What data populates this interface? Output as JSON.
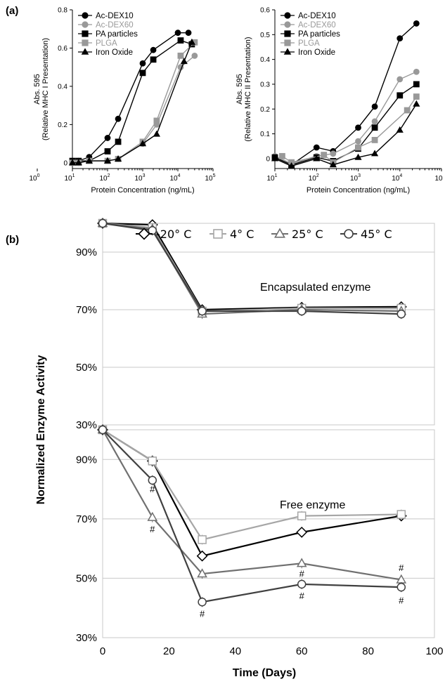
{
  "panel_labels": {
    "a": "(a)",
    "b": "(b)"
  },
  "chart_data": [
    {
      "id": "a1",
      "type": "line",
      "x_scale": "log",
      "xlabel": "Protein Concentration (ng/mL)",
      "ylabel_line1": "Abs. 595",
      "ylabel_line2": "(Relative MHC I Presentation)",
      "xlim": [
        1,
        5
      ],
      "ylim": [
        -0.03,
        0.8
      ],
      "x_ticks": [
        {
          "exp": 0,
          "label": "10",
          "sup": "0"
        },
        {
          "exp": 1,
          "label": "10",
          "sup": "1"
        },
        {
          "exp": 2,
          "label": "10",
          "sup": "2"
        },
        {
          "exp": 3,
          "label": "10",
          "sup": "3"
        },
        {
          "exp": 4,
          "label": "10",
          "sup": "4"
        },
        {
          "exp": 5,
          "label": "10",
          "sup": "5"
        }
      ],
      "y_ticks": [
        {
          "v": 0,
          "label": "0"
        },
        {
          "v": 0.2,
          "label": "0.2"
        },
        {
          "v": 0.4,
          "label": "0.4"
        },
        {
          "v": 0.6,
          "label": "0.6"
        },
        {
          "v": 0.8,
          "label": "0.8"
        }
      ],
      "series": [
        {
          "name": "Ac-DEX10",
          "color": "#000000",
          "marker": "circle",
          "x": [
            10,
            15,
            30,
            100,
            200,
            1000,
            2000,
            10000,
            20000
          ],
          "y": [
            0.01,
            0.01,
            0.03,
            0.13,
            0.23,
            0.52,
            0.59,
            0.68,
            0.68
          ]
        },
        {
          "name": "Ac-DEX60",
          "color": "#999999",
          "marker": "circle",
          "x": [
            10,
            15,
            30,
            100,
            200,
            1000,
            2500,
            12000,
            30000
          ],
          "y": [
            0.0,
            0.0,
            0.01,
            0.01,
            0.02,
            0.1,
            0.2,
            0.5,
            0.56
          ]
        },
        {
          "name": "PA particles",
          "color": "#000000",
          "marker": "square",
          "x": [
            10,
            15,
            30,
            100,
            200,
            1000,
            2000,
            12000,
            25000
          ],
          "y": [
            0.01,
            0.01,
            0.01,
            0.06,
            0.11,
            0.47,
            0.54,
            0.64,
            0.62
          ]
        },
        {
          "name": "PLGA",
          "color": "#999999",
          "marker": "square",
          "x": [
            10,
            15,
            30,
            100,
            200,
            1000,
            2500,
            12000,
            30000
          ],
          "y": [
            0.0,
            0.0,
            0.01,
            0.01,
            0.02,
            0.11,
            0.22,
            0.56,
            0.63
          ]
        },
        {
          "name": "Iron Oxide",
          "color": "#000000",
          "marker": "triangle",
          "x": [
            10,
            15,
            30,
            100,
            200,
            1000,
            2500,
            15000,
            25000
          ],
          "y": [
            0.0,
            0.0,
            0.01,
            0.01,
            0.02,
            0.1,
            0.15,
            0.53,
            0.63
          ]
        }
      ]
    },
    {
      "id": "a2",
      "type": "line",
      "x_scale": "log",
      "xlabel": "Protein Concentration (ng/mL)",
      "ylabel_line1": "Abs. 595",
      "ylabel_line2": "(Relative MHC II Presentation)",
      "xlim": [
        1,
        5
      ],
      "ylim": [
        -0.04,
        0.6
      ],
      "x_ticks": [
        {
          "exp": 1,
          "label": "10",
          "sup": "1"
        },
        {
          "exp": 2,
          "label": "10",
          "sup": "2"
        },
        {
          "exp": 3,
          "label": "10",
          "sup": "3"
        },
        {
          "exp": 4,
          "label": "10",
          "sup": "4"
        },
        {
          "exp": 5,
          "label": "10",
          "sup": ""
        }
      ],
      "y_ticks": [
        {
          "v": 0,
          "label": "0"
        },
        {
          "v": 0.1,
          "label": "0.1"
        },
        {
          "v": 0.2,
          "label": "0.2"
        },
        {
          "v": 0.3,
          "label": "0.3"
        },
        {
          "v": 0.4,
          "label": "0.4"
        },
        {
          "v": 0.5,
          "label": "0.5"
        },
        {
          "v": 0.6,
          "label": "0.6"
        }
      ],
      "series": [
        {
          "name": "Ac-DEX10",
          "color": "#000000",
          "marker": "circle",
          "x": [
            10,
            25,
            100,
            250,
            1000,
            2500,
            10000,
            25000
          ],
          "y": [
            0.005,
            -0.025,
            0.045,
            0.03,
            0.125,
            0.21,
            0.485,
            0.545
          ]
        },
        {
          "name": "Ac-DEX60",
          "color": "#999999",
          "marker": "circle",
          "x": [
            10,
            25,
            100,
            250,
            1000,
            2500,
            10000,
            25000
          ],
          "y": [
            0.01,
            -0.02,
            0.01,
            0.02,
            0.07,
            0.15,
            0.32,
            0.35
          ]
        },
        {
          "name": "PA particles",
          "color": "#000000",
          "marker": "square",
          "x": [
            10,
            25,
            100,
            250,
            1000,
            2500,
            10000,
            25000
          ],
          "y": [
            0.005,
            -0.025,
            0.005,
            -0.01,
            0.04,
            0.125,
            0.255,
            0.3
          ]
        },
        {
          "name": "PLGA",
          "color": "#999999",
          "marker": "square",
          "x": [
            15,
            25,
            150,
            250,
            1000,
            2500,
            15000,
            25000
          ],
          "y": [
            0.01,
            -0.015,
            0.015,
            -0.015,
            0.045,
            0.075,
            0.195,
            0.25
          ]
        },
        {
          "name": "Iron Oxide",
          "color": "#000000",
          "marker": "triangle",
          "x": [
            10,
            25,
            100,
            250,
            1000,
            2500,
            10000,
            25000
          ],
          "y": [
            0.0,
            -0.03,
            0.0,
            -0.025,
            0.005,
            0.02,
            0.115,
            0.22
          ]
        }
      ]
    },
    {
      "id": "b",
      "type": "line",
      "xlabel": "Time (Days)",
      "ylabel": "Normalized Enzyme Activity",
      "xlim": [
        0,
        100
      ],
      "x_ticks": [
        0,
        20,
        40,
        60,
        80,
        100
      ],
      "y_ticks": [
        {
          "v": 30,
          "label": "30%"
        },
        {
          "v": 50,
          "label": "50%"
        },
        {
          "v": 70,
          "label": "70%"
        },
        {
          "v": 90,
          "label": "90%"
        }
      ],
      "legend": [
        {
          "name": "-20° C",
          "color": "#000000",
          "marker": "diamond"
        },
        {
          "name": "4° C",
          "color": "#a6a6a6",
          "marker": "square"
        },
        {
          "name": "25° C",
          "color": "#707070",
          "marker": "triangle"
        },
        {
          "name": "45° C",
          "color": "#404040",
          "marker": "circle"
        }
      ],
      "subplots": [
        {
          "annotation": "Encapsulated enzyme",
          "ylim": [
            30,
            100
          ],
          "series": [
            {
              "name": "-20° C",
              "x": [
                0,
                15,
                30,
                60,
                90
              ],
              "y": [
                100,
                99.5,
                70,
                70.8,
                71
              ]
            },
            {
              "name": "4° C",
              "x": [
                0,
                15,
                30,
                60,
                90
              ],
              "y": [
                100,
                98.5,
                69.5,
                70.5,
                70.5
              ]
            },
            {
              "name": "25° C",
              "x": [
                0,
                15,
                30,
                60,
                90
              ],
              "y": [
                100,
                98,
                68.5,
                70,
                69.5
              ]
            },
            {
              "name": "45° C",
              "x": [
                0,
                15,
                30,
                60,
                90
              ],
              "y": [
                100,
                97.5,
                69.5,
                69.5,
                68.5
              ]
            }
          ]
        },
        {
          "annotation": "Free enzyme",
          "ylim": [
            30,
            100
          ],
          "series": [
            {
              "name": "-20° C",
              "x": [
                0,
                15,
                30,
                60,
                90
              ],
              "y": [
                100,
                89.5,
                57.5,
                65.5,
                71
              ]
            },
            {
              "name": "4° C",
              "x": [
                0,
                15,
                30,
                60,
                90
              ],
              "y": [
                100,
                89.5,
                63,
                71,
                71.5
              ]
            },
            {
              "name": "25° C",
              "x": [
                0,
                15,
                30,
                60,
                90
              ],
              "y": [
                100,
                70.5,
                51.5,
                55,
                49.5
              ]
            },
            {
              "name": "45° C",
              "x": [
                0,
                15,
                30,
                60,
                90
              ],
              "y": [
                100,
                83,
                42,
                48,
                47
              ]
            }
          ],
          "significance": [
            {
              "x": 15,
              "y": 79,
              "label": "#"
            },
            {
              "x": 15,
              "y": 65.5,
              "label": "#"
            },
            {
              "x": 30,
              "y": 37,
              "label": "#"
            },
            {
              "x": 60,
              "y": 50.5,
              "label": "#"
            },
            {
              "x": 60,
              "y": 43,
              "label": "#"
            },
            {
              "x": 90,
              "y": 52.5,
              "label": "#"
            },
            {
              "x": 90,
              "y": 41.5,
              "label": "#"
            }
          ]
        }
      ]
    }
  ]
}
